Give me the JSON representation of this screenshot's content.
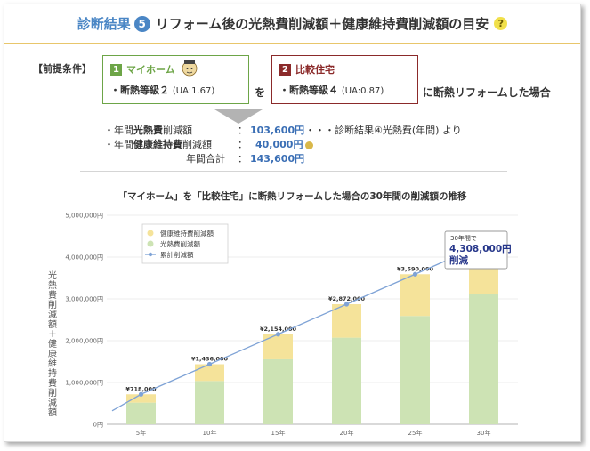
{
  "header": {
    "lead": "診断結果",
    "step_number": "5",
    "title": "リフォーム後の光熱費削減額＋健康維持費削減額の目安",
    "help_symbol": "?"
  },
  "premise": {
    "label": "【前提条件】",
    "my_home": {
      "number": "1",
      "name": "マイホーム",
      "line": "・断熱等級２",
      "ua": "(UA:1.67)"
    },
    "connector": "を",
    "comparison": {
      "number": "2",
      "name": "比較住宅",
      "line": "・断熱等級４",
      "ua": "(UA:0.87)"
    },
    "tail": "に断熱リフォームした場合"
  },
  "results": {
    "utility_prefix": "・年間",
    "utility_bold": "光熱費",
    "utility_suffix": "削減額",
    "utility_colon": "：",
    "utility_value": "103,600円",
    "utility_note": "・・・診断結果④光熱費(年間) より",
    "health_prefix": "・年間",
    "health_bold": "健康維持費",
    "health_suffix": "削減額",
    "health_colon": "：",
    "health_value": "40,000円",
    "total_label": "年間合計",
    "total_colon": "：",
    "total_value": "143,600円"
  },
  "colors": {
    "health_bar": "#f5e39a",
    "utility_bar": "#cde3b4",
    "line": "#7fa3d6",
    "accent_blue": "#4a86c5"
  },
  "chart_data": {
    "type": "bar",
    "title": "「マイホーム」を「比較住宅」に断熱リフォームした場合の30年間の削減額の推移",
    "ylabel": "光熱費削減額＋健康維持費削減額",
    "categories": [
      "5年",
      "10年",
      "15年",
      "20年",
      "25年",
      "30年"
    ],
    "ylim": [
      0,
      5000000
    ],
    "y_ticks": [
      "0円",
      "1,000,000円",
      "2,000,000円",
      "3,000,000円",
      "4,000,000円",
      "5,000,000円"
    ],
    "stacked": true,
    "series": [
      {
        "name": "健康維持費削減額",
        "values": [
          200000,
          400000,
          600000,
          800000,
          1000000,
          1200000
        ]
      },
      {
        "name": "光熱費削減額",
        "values": [
          518000,
          1036000,
          1554000,
          2072000,
          2590000,
          3108000
        ]
      },
      {
        "name": "累計削減額",
        "type": "line",
        "values": [
          718000,
          1436000,
          2154000,
          2872000,
          3590000,
          4308000
        ]
      }
    ],
    "data_labels": [
      "¥718,000",
      "¥1,436,000",
      "¥2,154,000",
      "¥2,872,000",
      "¥3,590,000",
      "¥4,308,000"
    ],
    "legend_position": "top-left",
    "callout": {
      "small": "30年間で",
      "value": "4,308,000円",
      "suffix": "削減"
    }
  }
}
